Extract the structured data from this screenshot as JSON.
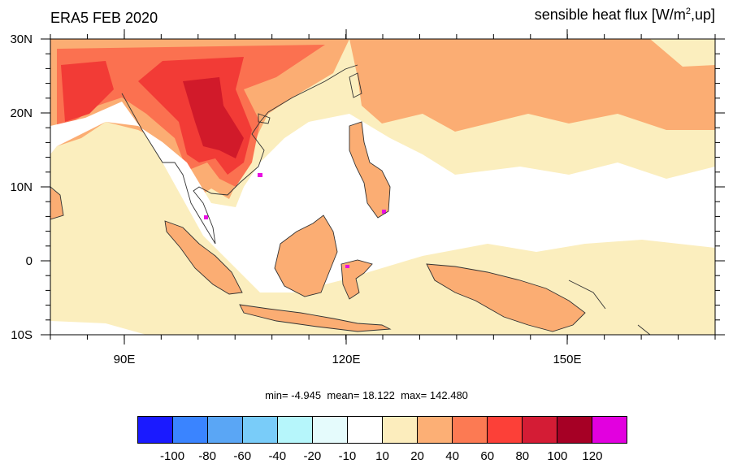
{
  "header": {
    "left_title": "ERA5 FEB 2020",
    "right_title_prefix": "sensible heat flux [W/m",
    "right_title_sup": "2",
    "right_title_suffix": ",up]"
  },
  "map": {
    "lon_range": [
      80,
      170
    ],
    "lat_range": [
      -10,
      30
    ],
    "lat_ticks": [
      "30N",
      "20N",
      "10N",
      "0",
      "10S"
    ],
    "lon_ticks": [
      "90E",
      "120E",
      "150E"
    ],
    "colors": {
      "lt10": "#ffffff",
      "c10_20": "#fbeebe",
      "c20_40": "#fbad73",
      "c40_60": "#fb7150",
      "c60_80": "#f23b36",
      "c80_100": "#d11a2a",
      "magenta": "#e80fe2"
    }
  },
  "stats": {
    "min_label": "min=",
    "min": "-4.945",
    "mean_label": "mean=",
    "mean": "18.122",
    "max_label": "max=",
    "max": "142.480"
  },
  "colorbar": {
    "colors": [
      "#1a1aff",
      "#3a84ff",
      "#5aa6f5",
      "#79ccf9",
      "#b6f6fb",
      "#e5fbfc",
      "#ffffff",
      "#fcedbd",
      "#fcaf75",
      "#fc7a53",
      "#fc4038",
      "#d41c35",
      "#a60025",
      "#e200df"
    ],
    "labels": [
      "-100",
      "-80",
      "-60",
      "-40",
      "-20",
      "-10",
      "10",
      "20",
      "40",
      "60",
      "80",
      "100",
      "120"
    ]
  }
}
